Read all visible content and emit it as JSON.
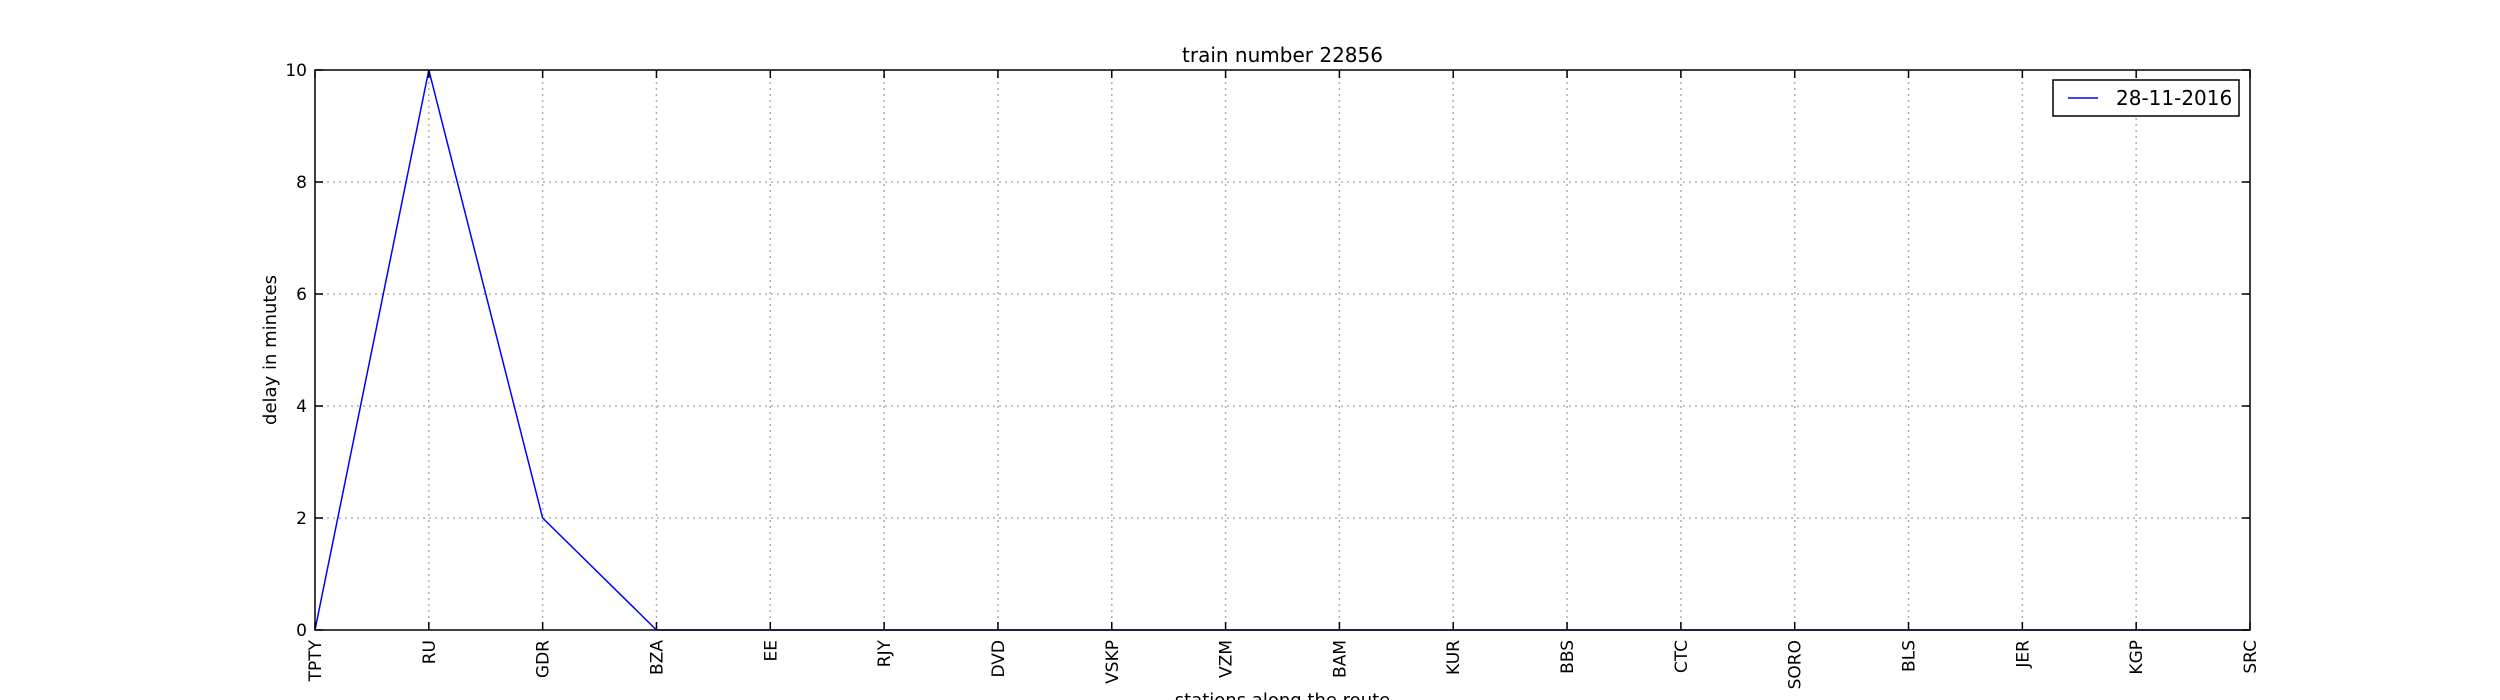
{
  "chart_data": {
    "type": "line",
    "title": "train number 22856",
    "xlabel": "stations along the route",
    "ylabel": "delay in minutes",
    "categories": [
      "TPTY",
      "RU",
      "GDR",
      "BZA",
      "EE",
      "RJY",
      "DVD",
      "VSKP",
      "VZM",
      "BAM",
      "KUR",
      "BBS",
      "CTC",
      "SORO",
      "BLS",
      "JER",
      "KGP",
      "SRC"
    ],
    "series": [
      {
        "name": "28-11-2016",
        "color": "#0000ff",
        "values": [
          0,
          10,
          2,
          0,
          0,
          0,
          0,
          0,
          0,
          0,
          0,
          0,
          0,
          0,
          0,
          0,
          0,
          0
        ]
      }
    ],
    "ylim": [
      0,
      10
    ],
    "yticks": [
      0,
      2,
      4,
      6,
      8,
      10
    ],
    "grid": true,
    "legend_position": "top-right"
  }
}
